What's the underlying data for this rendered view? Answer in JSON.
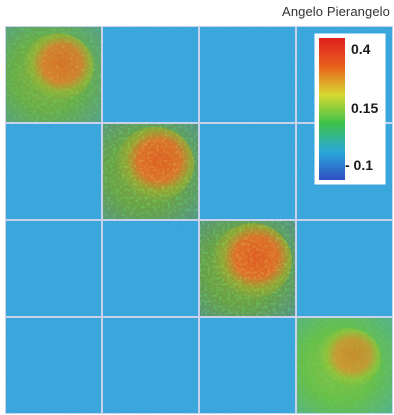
{
  "credit": "Angelo Pierangelo",
  "chart_data": {
    "type": "heatmap",
    "rows": 4,
    "cols": 4,
    "values": [
      [
        0.28,
        0.0,
        0.0,
        0.0
      ],
      [
        0.0,
        0.33,
        0.0,
        0.0
      ],
      [
        0.0,
        0.0,
        0.34,
        0.0
      ],
      [
        0.0,
        0.0,
        0.0,
        0.22
      ]
    ],
    "color_scale": {
      "min": -0.1,
      "max": 0.4,
      "ticks": [
        "0.4",
        "0.15",
        "- 0.1"
      ],
      "colors": [
        "#2f4fc4",
        "#2aa8d8",
        "#3ec24a",
        "#d8d830",
        "#e8601c",
        "#e02020"
      ]
    },
    "grid_color": "#c8d2ea",
    "legend_position": "top-right"
  }
}
